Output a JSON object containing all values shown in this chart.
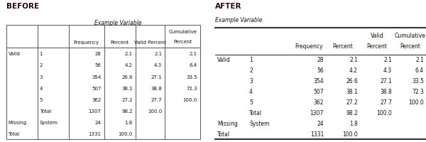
{
  "before_title": "BEFORE",
  "after_title": "AFTER",
  "table_title": "Example Variable",
  "rows": [
    [
      "Valid",
      "1",
      "28",
      "2.1",
      "2.1",
      "2.1"
    ],
    [
      "",
      "2",
      "56",
      "4.2",
      "4.3",
      "6.4"
    ],
    [
      "",
      "3",
      "354",
      "26.6",
      "27.1",
      "33.5"
    ],
    [
      "",
      "4",
      "507",
      "38.1",
      "38.8",
      "72.3"
    ],
    [
      "",
      "5",
      "362",
      "27.2",
      "27.7",
      "100.0"
    ],
    [
      "",
      "Total",
      "1307",
      "98.2",
      "100.0",
      ""
    ],
    [
      "Missing",
      "System",
      "24",
      "1.8",
      "",
      ""
    ],
    [
      "Total",
      "",
      "1331",
      "100.0",
      "",
      ""
    ]
  ],
  "bg_color": "#ffffff",
  "text_color": "#1a1001",
  "title_color": "#2a0a0a",
  "line_color": "#555555",
  "apa_line_color": "#333333"
}
